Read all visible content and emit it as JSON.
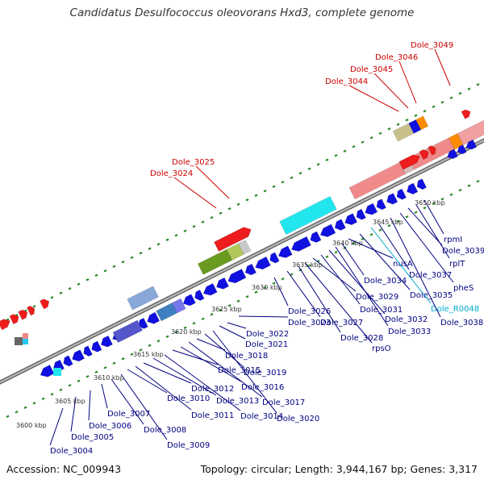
{
  "title": "Candidatus Desulfococcus oleovorans Hxd3, complete genome",
  "footer": {
    "accession": "Accession: NC_009943",
    "topology": "Topology: circular; Length: 3,944,167 bp; Genes: 3,317"
  },
  "colors": {
    "forward_gene": "#ee1c1c",
    "reverse_gene": "#1010e0",
    "forward_label": "#cc0000",
    "reverse_label": "#000080",
    "rna_label": "#00aacc",
    "backbone": "#888888",
    "tick": "#2e8b2e"
  },
  "scale": [
    {
      "label": "3600 kbp"
    },
    {
      "label": "3605 kbp"
    },
    {
      "label": "3610 kbp"
    },
    {
      "label": "3615 kbp"
    },
    {
      "label": "3620 kbp"
    },
    {
      "label": "3625 kbp"
    },
    {
      "label": "3630 kbp"
    },
    {
      "label": "3635 kbp"
    },
    {
      "label": "3640 kbp"
    },
    {
      "label": "3645 kbp"
    },
    {
      "label": "3650 kbp"
    }
  ],
  "forward_labels": [
    {
      "name": "Dole_3024"
    },
    {
      "name": "Dole_3025"
    },
    {
      "name": "Dole_3044"
    },
    {
      "name": "Dole_3045"
    },
    {
      "name": "Dole_3046"
    },
    {
      "name": "Dole_3049"
    }
  ],
  "reverse_labels": [
    {
      "name": "Dole_3004"
    },
    {
      "name": "Dole_3005"
    },
    {
      "name": "Dole_3006"
    },
    {
      "name": "Dole_3007"
    },
    {
      "name": "Dole_3008"
    },
    {
      "name": "Dole_3009"
    },
    {
      "name": "Dole_3010"
    },
    {
      "name": "Dole_3011"
    },
    {
      "name": "Dole_3012"
    },
    {
      "name": "Dole_3013"
    },
    {
      "name": "Dole_3014"
    },
    {
      "name": "Dole_3015"
    },
    {
      "name": "Dole_3016"
    },
    {
      "name": "Dole_3017"
    },
    {
      "name": "Dole_3018"
    },
    {
      "name": "Dole_3019"
    },
    {
      "name": "Dole_3020"
    },
    {
      "name": "Dole_3021"
    },
    {
      "name": "Dole_3022"
    },
    {
      "name": "Dole_3023"
    },
    {
      "name": "Dole_3026"
    },
    {
      "name": "Dole_3027"
    },
    {
      "name": "Dole_3028"
    },
    {
      "name": "rpsO"
    },
    {
      "name": "Dole_3029"
    },
    {
      "name": "Dole_3031"
    },
    {
      "name": "Dole_3032"
    },
    {
      "name": "Dole_3033"
    },
    {
      "name": "Dole_3034"
    },
    {
      "name": "nusA"
    },
    {
      "name": "Dole_3035"
    },
    {
      "name": "Dole_R0048",
      "type": "rna"
    },
    {
      "name": "Dole_3037"
    },
    {
      "name": "Dole_3038"
    },
    {
      "name": "pheS"
    },
    {
      "name": "Dole_3039"
    },
    {
      "name": "rplT"
    },
    {
      "name": "rpmI"
    }
  ]
}
